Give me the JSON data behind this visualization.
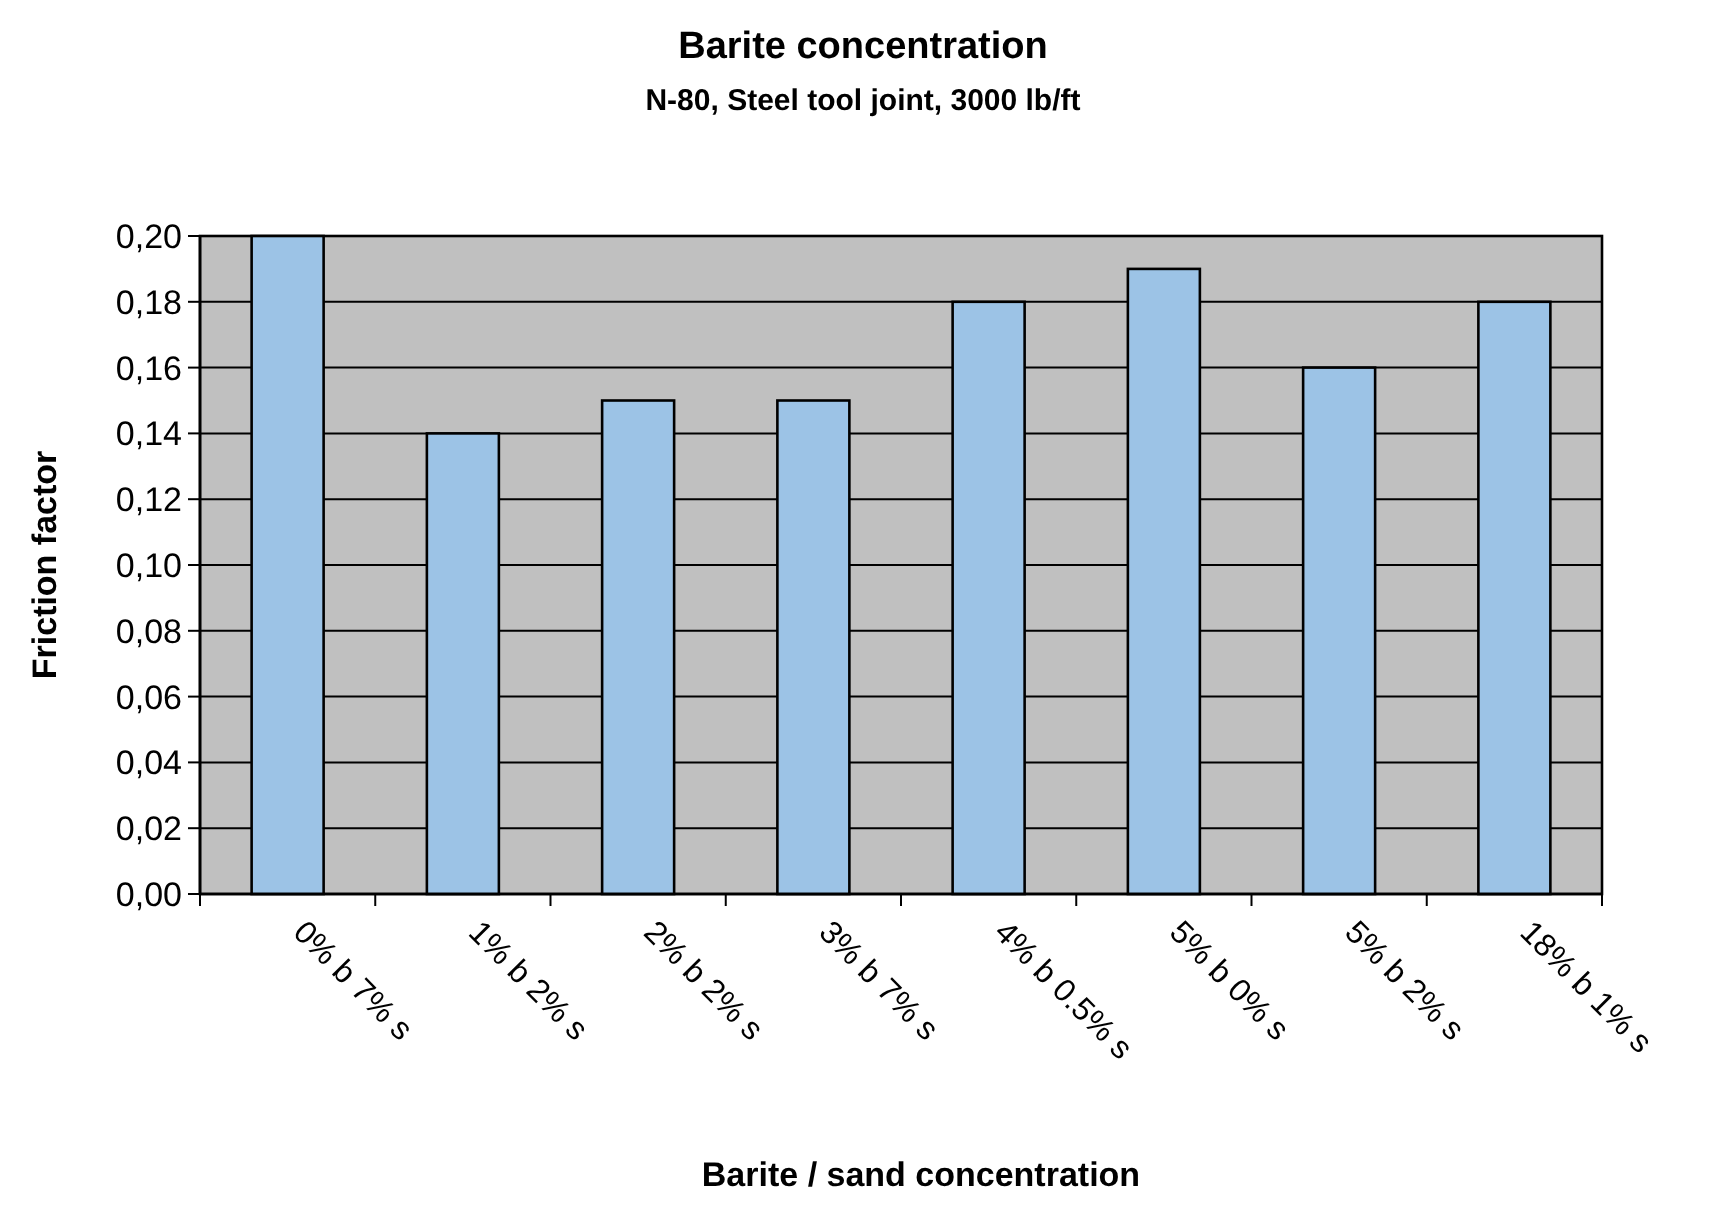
{
  "chart_data": {
    "type": "bar",
    "title": "Barite concentration",
    "subtitle": "N-80, Steel tool joint, 3000 lb/ft",
    "xlabel": "Barite / sand concentration",
    "ylabel": "Friction factor",
    "categories": [
      "0% b 7% s",
      "1% b 2% s",
      "2% b 2% s",
      "3% b 7% s",
      "4% b 0.5% s",
      "5% b 0% s",
      "5% b 2% s",
      "18% b 1% s"
    ],
    "values": [
      0.2,
      0.14,
      0.15,
      0.15,
      0.18,
      0.19,
      0.16,
      0.18
    ],
    "color": "#9cc3e6",
    "ylim": [
      0,
      0.2
    ],
    "yticks": [
      {
        "value": 0,
        "label": "0,00"
      },
      {
        "value": 0.02,
        "label": "0,02"
      },
      {
        "value": 0.04,
        "label": "0,04"
      },
      {
        "value": 0.06,
        "label": "0,06"
      },
      {
        "value": 0.08,
        "label": "0,08"
      },
      {
        "value": 0.1,
        "label": "0,10"
      },
      {
        "value": 0.12,
        "label": "0,12"
      },
      {
        "value": 0.14,
        "label": "0,14"
      },
      {
        "value": 0.16,
        "label": "0,16"
      },
      {
        "value": 0.18,
        "label": "0,18"
      },
      {
        "value": 0.2,
        "label": "0,20"
      }
    ],
    "grid": "y"
  }
}
